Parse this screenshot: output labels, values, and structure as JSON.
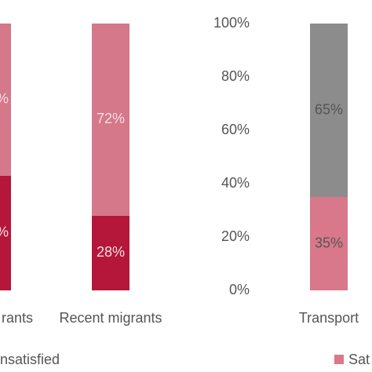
{
  "chart_data": [
    {
      "type": "bar",
      "stacked": true,
      "categories": [
        "rants",
        "Recent migrants"
      ],
      "series": [
        {
          "name": "nsatisfied",
          "color": "#b5173a",
          "values": [
            43,
            28
          ],
          "value_labels": [
            "%",
            "28%"
          ]
        },
        {
          "color": "#d4788a",
          "values": [
            57,
            72
          ],
          "value_labels": [
            "%",
            "72%"
          ]
        }
      ],
      "ylim": [
        0,
        100
      ]
    },
    {
      "type": "bar",
      "stacked": true,
      "categories": [
        "Transport"
      ],
      "series": [
        {
          "name": "Sat",
          "color": "#d9788a",
          "values": [
            35
          ],
          "value_labels": [
            "35%"
          ]
        },
        {
          "color": "#8c8c8c",
          "values": [
            65
          ],
          "value_labels": [
            "65%"
          ]
        }
      ],
      "ylim": [
        0,
        100
      ],
      "yticks": [
        {
          "value": 0,
          "label": "0%"
        },
        {
          "value": 20,
          "label": "20%"
        },
        {
          "value": 40,
          "label": "40%"
        },
        {
          "value": 60,
          "label": "60%"
        },
        {
          "value": 80,
          "label": "80%"
        },
        {
          "value": 100,
          "label": "100%"
        }
      ]
    }
  ]
}
